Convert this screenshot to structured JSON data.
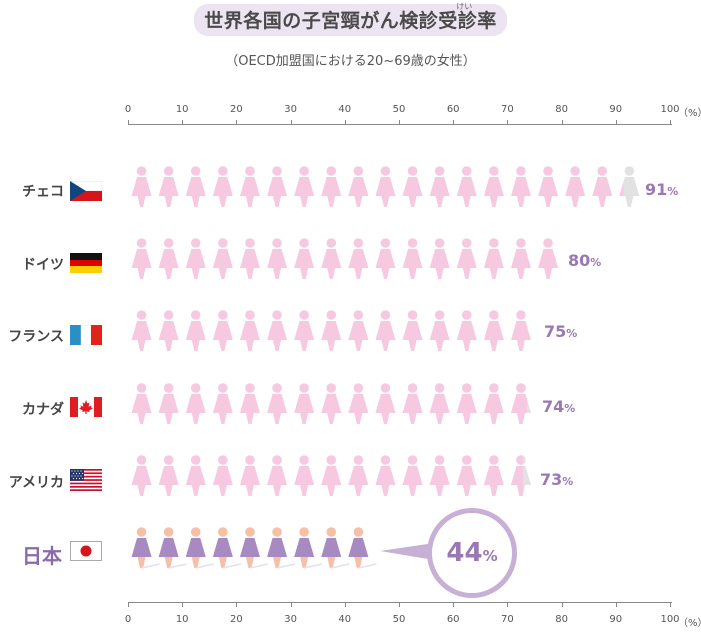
{
  "title": "世界各国の子宮頸がん検診受診率",
  "title_ruby": "けい",
  "subtitle": "（OECD加盟国における20~69歳の女性）",
  "colors": {
    "pink": "#f6c9e1",
    "grey": "#e2e2e2",
    "purple": "#a78ac2",
    "accent": "#9a78b4",
    "skin": "#f6bfa6"
  },
  "chart_data": {
    "type": "bar",
    "categories": [
      "チェコ",
      "ドイツ",
      "フランス",
      "カナダ",
      "アメリカ",
      "日本"
    ],
    "values": [
      91,
      80,
      75,
      74,
      73,
      44
    ],
    "value_labels": [
      "91",
      "80",
      "75",
      "74",
      "73",
      "44"
    ],
    "unit_label": "%",
    "xlim": [
      0,
      100
    ],
    "ticks": [
      "0",
      "10",
      "20",
      "30",
      "40",
      "50",
      "60",
      "70",
      "80",
      "90",
      "100"
    ],
    "axis_unit": "（%）",
    "icon_step": 5
  },
  "rows": [
    {
      "label": "チェコ",
      "flag": "czech-flag-icon"
    },
    {
      "label": "ドイツ",
      "flag": "germany-flag-icon"
    },
    {
      "label": "フランス",
      "flag": "france-flag-icon"
    },
    {
      "label": "カナダ",
      "flag": "canada-flag-icon"
    },
    {
      "label": "アメリカ",
      "flag": "usa-flag-icon"
    },
    {
      "label": "日本",
      "flag": "japan-flag-icon"
    }
  ],
  "callout": {
    "value": "44",
    "unit": "%"
  }
}
